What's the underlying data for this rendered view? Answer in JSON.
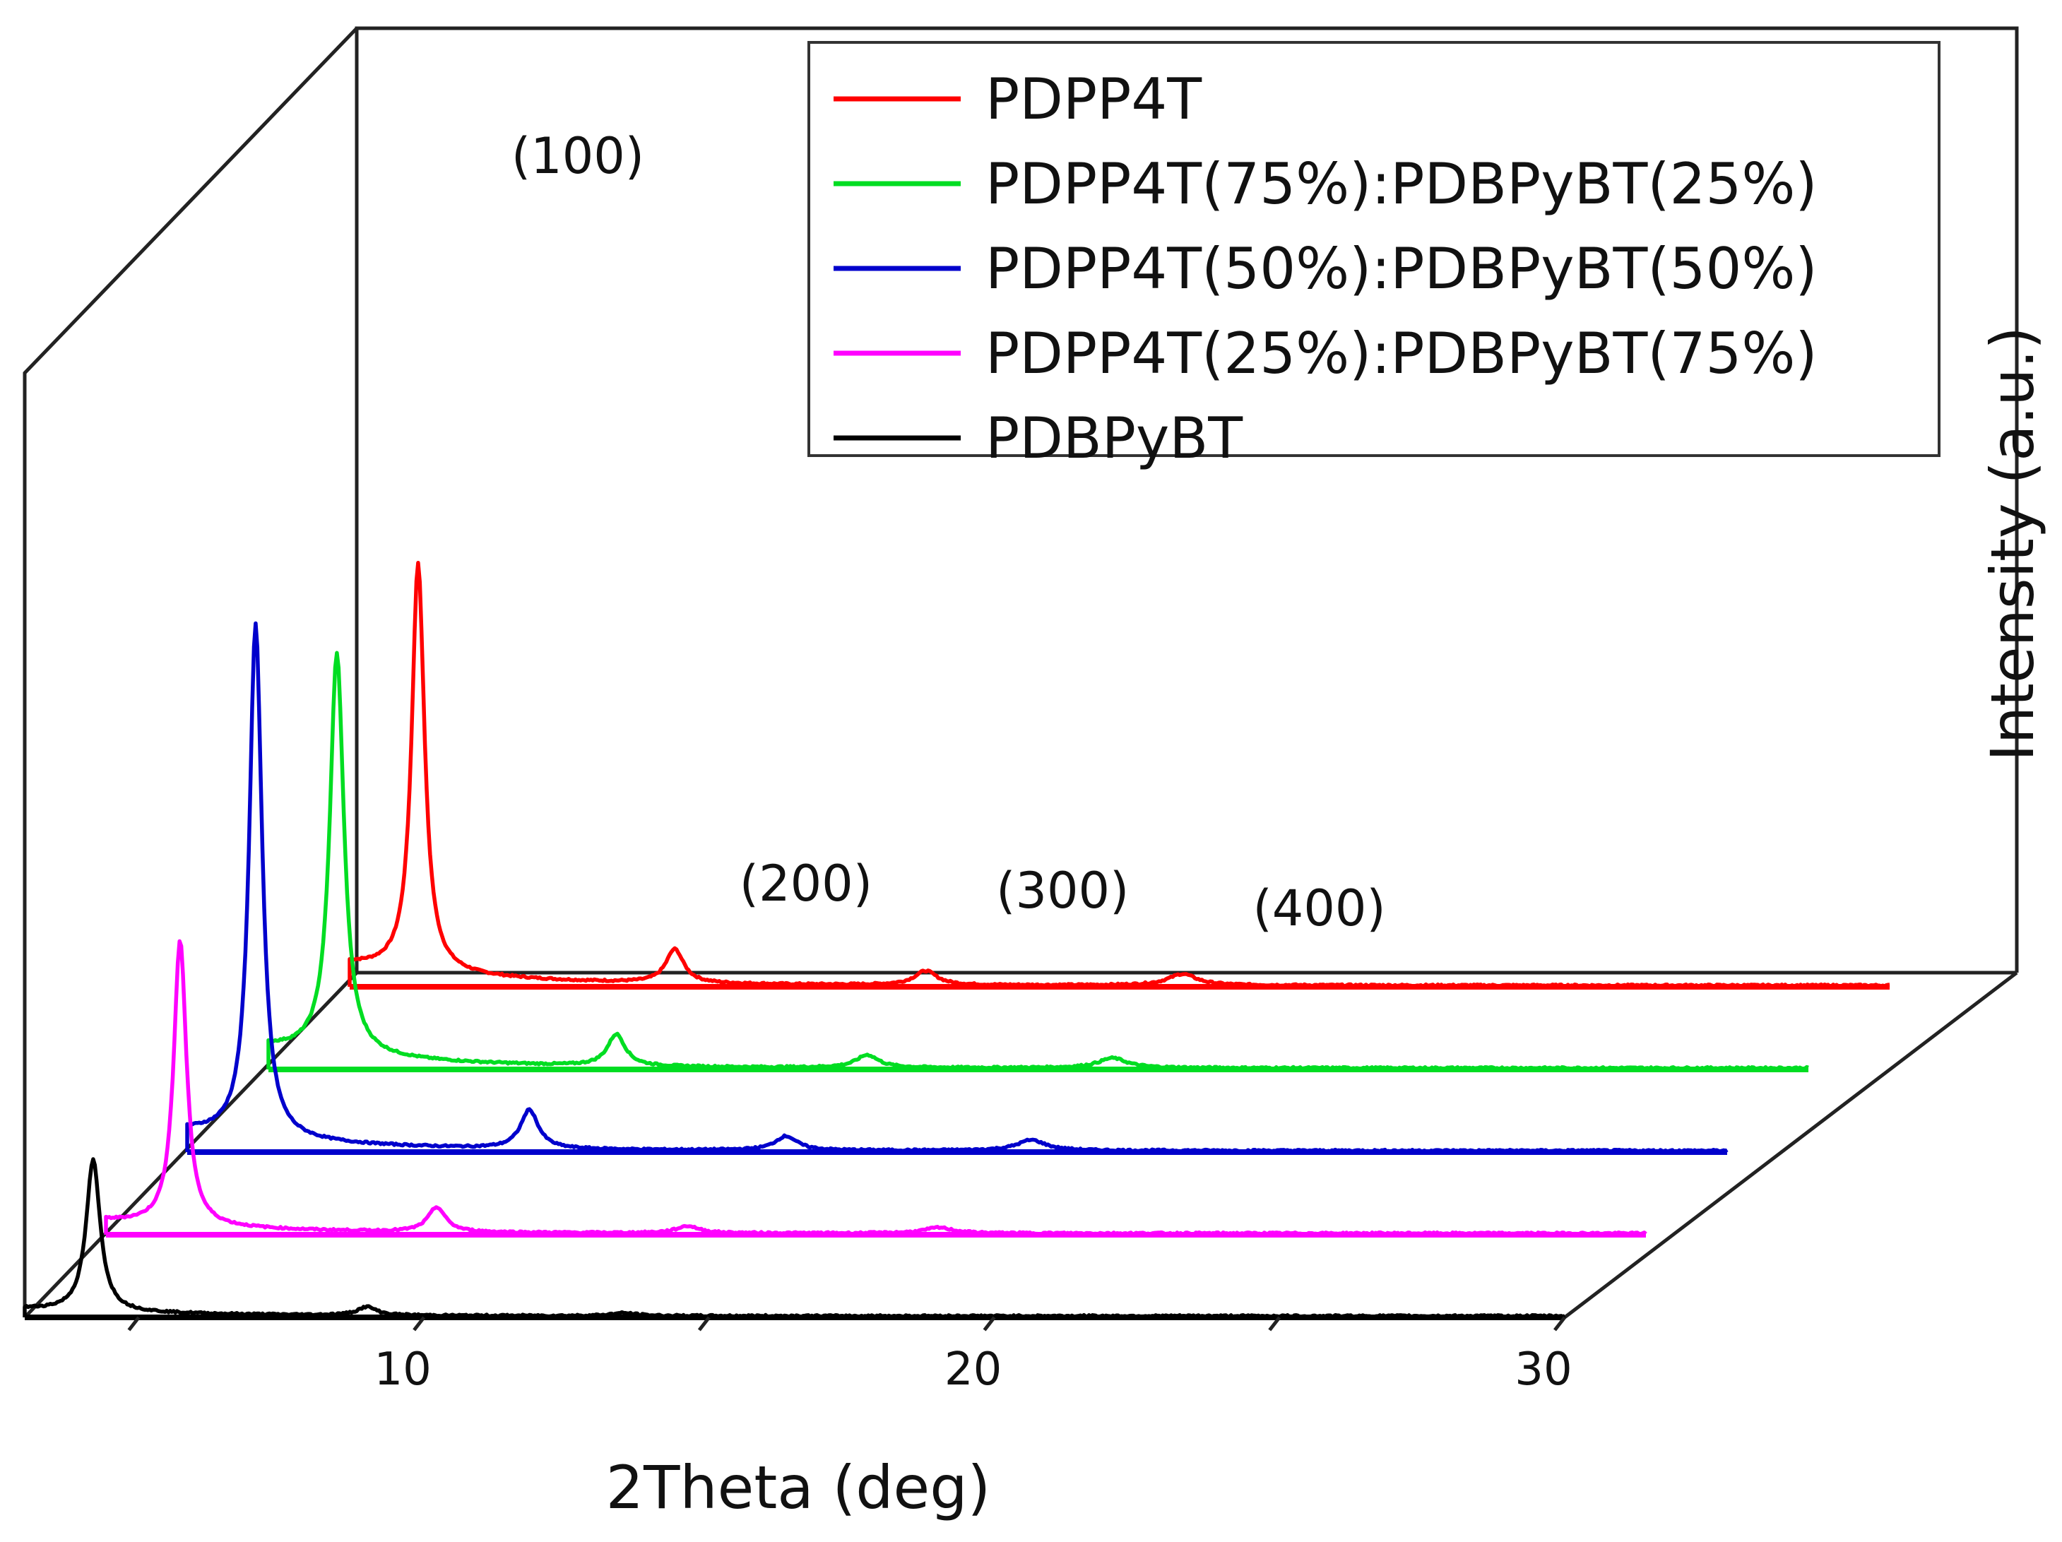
{
  "chart_data": {
    "type": "line",
    "subtype": "stacked-3d-xrd",
    "xlabel": "2Theta (deg)",
    "ylabel": "Intensity (a.u.)",
    "xlim": [
      3,
      30
    ],
    "x_ticks": [
      10,
      20,
      30
    ],
    "x_tick_labels": [
      "10",
      "20",
      "30"
    ],
    "legend_position": "top-right",
    "peak_labels": [
      {
        "label": "(100)",
        "x": 7.0
      },
      {
        "label": "(200)",
        "x": 11.0
      },
      {
        "label": "(300)",
        "x": 15.5
      },
      {
        "label": "(400)",
        "x": 20.0
      }
    ],
    "series": [
      {
        "name": "PDBPyBT",
        "color": "#000000",
        "start_x": 3.0,
        "baseline": 0.1,
        "peaks": [
          {
            "x": 4.2,
            "height": 2.15,
            "width": 0.22
          },
          {
            "x": 9.0,
            "height": 0.12,
            "width": 0.3
          },
          {
            "x": 13.5,
            "height": 0.04,
            "width": 0.4
          }
        ]
      },
      {
        "name": "PDPP4T(25%):PDBPyBT(75%)",
        "color": "#FF00FF",
        "start_x": 3.0,
        "baseline": 0.18,
        "peaks": [
          {
            "x": 4.3,
            "height": 4.05,
            "width": 0.2
          },
          {
            "x": 8.8,
            "height": 0.35,
            "width": 0.28
          },
          {
            "x": 13.2,
            "height": 0.1,
            "width": 0.35
          },
          {
            "x": 17.6,
            "height": 0.08,
            "width": 0.45
          }
        ]
      },
      {
        "name": "PDPP4T(50%):PDBPyBT(50%)",
        "color": "#0000CC",
        "start_x": 3.0,
        "baseline": 0.28,
        "peaks": [
          {
            "x": 4.2,
            "height": 7.3,
            "width": 0.2
          },
          {
            "x": 9.0,
            "height": 0.55,
            "width": 0.28
          },
          {
            "x": 13.5,
            "height": 0.2,
            "width": 0.35
          },
          {
            "x": 17.8,
            "height": 0.15,
            "width": 0.45
          }
        ]
      },
      {
        "name": "PDPP4T(75%):PDBPyBT(25%)",
        "color": "#00DD22",
        "start_x": 3.0,
        "baseline": 0.3,
        "peaks": [
          {
            "x": 4.2,
            "height": 5.7,
            "width": 0.22
          },
          {
            "x": 9.1,
            "height": 0.45,
            "width": 0.28
          },
          {
            "x": 13.5,
            "height": 0.18,
            "width": 0.35
          },
          {
            "x": 17.8,
            "height": 0.14,
            "width": 0.45
          }
        ]
      },
      {
        "name": "PDPP4T",
        "color": "#FF0000",
        "start_x": 3.0,
        "baseline": 0.3,
        "peaks": [
          {
            "x": 4.2,
            "height": 5.8,
            "width": 0.2
          },
          {
            "x": 8.7,
            "height": 0.48,
            "width": 0.28
          },
          {
            "x": 13.1,
            "height": 0.2,
            "width": 0.35
          },
          {
            "x": 17.6,
            "height": 0.16,
            "width": 0.45
          }
        ]
      }
    ],
    "legend": [
      {
        "label": "PDPP4T",
        "color": "#FF0000"
      },
      {
        "label": "PDPP4T(75%):PDBPyBT(25%)",
        "color": "#00DD22"
      },
      {
        "label": "PDPP4T(50%):PDBPyBT(50%)",
        "color": "#0000CC"
      },
      {
        "label": "PDPP4T(25%):PDBPyBT(75%)",
        "color": "#FF00FF"
      },
      {
        "label": "PDBPyBT",
        "color": "#000000"
      }
    ]
  }
}
